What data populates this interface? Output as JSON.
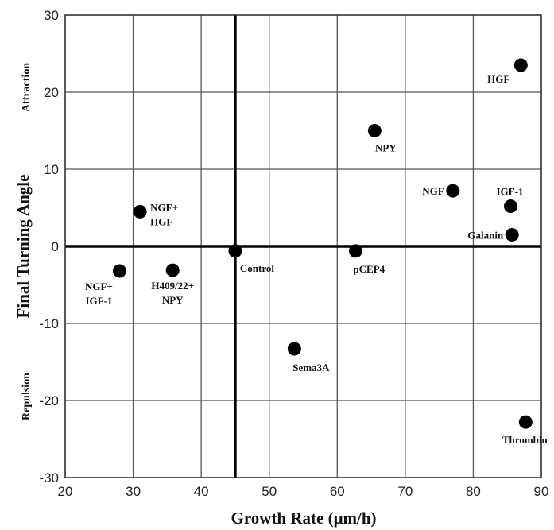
{
  "chart_data": {
    "type": "scatter",
    "title": "",
    "xlabel": "Growth Rate (μm/h)",
    "ylabel": "Final Turning Angle",
    "xlim": [
      20,
      90
    ],
    "ylim": [
      -30,
      30
    ],
    "xticks": [
      20,
      30,
      40,
      50,
      60,
      70,
      80,
      90
    ],
    "yticks": [
      -30,
      -20,
      -10,
      0,
      10,
      20,
      30
    ],
    "grid": true,
    "reference_lines": {
      "x": 45,
      "y": 0
    },
    "side_labels": {
      "top": "Attraction",
      "bottom": "Repulsion"
    },
    "points": [
      {
        "label": "HGF",
        "x": 87,
        "y": 23.5
      },
      {
        "label": "NPY",
        "x": 65.5,
        "y": 15
      },
      {
        "label": "NGF",
        "x": 77,
        "y": 7.2
      },
      {
        "label": "IGF-1",
        "x": 85.5,
        "y": 5.2
      },
      {
        "label": "Galanin",
        "x": 85.7,
        "y": 1.5
      },
      {
        "label": "NGF+\nHGF",
        "x": 31,
        "y": 4.5
      },
      {
        "label": "Control",
        "x": 45,
        "y": -0.6
      },
      {
        "label": "pCEP4",
        "x": 62.7,
        "y": -0.6
      },
      {
        "label": "NGF+\nIGF-1",
        "x": 28,
        "y": -3.2
      },
      {
        "label": "H409/22+\nNPY",
        "x": 35.8,
        "y": -3.1
      },
      {
        "label": "Sema3A",
        "x": 53.7,
        "y": -13.3
      },
      {
        "label": "Thrombin",
        "x": 87.7,
        "y": -22.8
      }
    ]
  }
}
